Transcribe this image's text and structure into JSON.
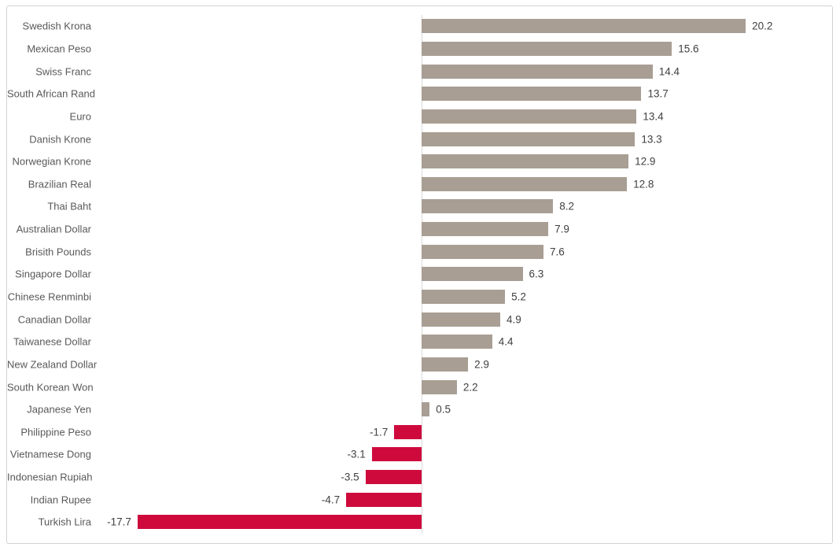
{
  "chart_data": {
    "type": "bar",
    "orientation": "horizontal",
    "title": "",
    "xlabel": "",
    "ylabel": "",
    "categories": [
      "Swedish Krona",
      "Mexican Peso",
      "Swiss Franc",
      "South African Rand",
      "Euro",
      "Danish Krone",
      "Norwegian Krone",
      "Brazilian Real",
      "Thai Baht",
      "Australian Dollar",
      "Brisith Pounds",
      "Singapore Dollar",
      "Chinese Renminbi",
      "Canadian Dollar",
      "Taiwanese Dollar",
      "New Zealand Dollar",
      "South Korean Won",
      "Japanese Yen",
      "Philippine Peso",
      "Vietnamese Dong",
      "Indonesian Rupiah",
      "Indian Rupee",
      "Turkish Lira"
    ],
    "values": [
      20.2,
      15.6,
      14.4,
      13.7,
      13.4,
      13.3,
      12.9,
      12.8,
      8.2,
      7.9,
      7.6,
      6.3,
      5.2,
      4.9,
      4.4,
      2.9,
      2.2,
      0.5,
      -1.7,
      -3.1,
      -3.5,
      -4.7,
      -17.7
    ],
    "data_labels": true,
    "grid": false,
    "legend": false,
    "xlim": [
      -18.5,
      26
    ],
    "colors": {
      "positive_bar": "#a89e93",
      "negative_bar": "#ce0a3d",
      "category_label": "#595959",
      "value_label": "#404040",
      "axis_line": "#d9d9d9",
      "card_border": "#d2d2d2",
      "background": "#ffffff"
    }
  }
}
